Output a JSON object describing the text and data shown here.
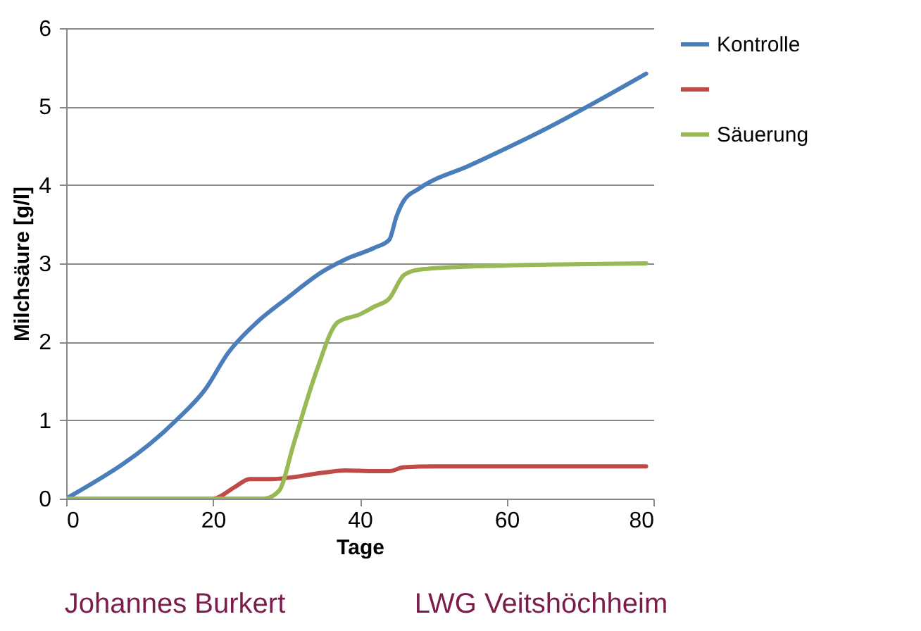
{
  "chart_data": {
    "type": "line",
    "xlabel": "Tage",
    "ylabel": "Milchsäure [g/l]",
    "xlim": [
      0,
      80
    ],
    "xticks": [
      0,
      20,
      40,
      60,
      80
    ],
    "ylim": [
      0,
      6
    ],
    "yticks": [
      0,
      1,
      2,
      3,
      4,
      5,
      6
    ],
    "grid": "y",
    "legend": "right",
    "marker": "none",
    "line_style": "solid",
    "annotations": [
      "Johannes Burkert",
      "LWG Veitshöchheim"
    ],
    "series": [
      {
        "name": "Kontrolle",
        "color": "#4a7ebb",
        "x": [
          0,
          15,
          19,
          22,
          26,
          30,
          35,
          38,
          42,
          44,
          45,
          46,
          48,
          55,
          65,
          79
        ],
        "values": [
          0,
          1.0,
          1.4,
          1.85,
          2.25,
          2.55,
          2.9,
          3.05,
          3.2,
          3.3,
          3.6,
          3.8,
          3.95,
          4.25,
          4.7,
          5.42
        ]
      },
      {
        "color": "#be4b48",
        "x": [
          0,
          20,
          23,
          25,
          28,
          35,
          38,
          42,
          44,
          46,
          50,
          79
        ],
        "values": [
          0,
          0,
          0.15,
          0.25,
          0.25,
          0.33,
          0.36,
          0.35,
          0.35,
          0.4,
          0.41,
          0.41
        ]
      },
      {
        "name": "Säuerung",
        "color": "#98b954",
        "x": [
          0,
          27,
          29,
          31,
          34,
          37,
          40,
          42,
          44,
          46,
          48,
          55,
          79
        ],
        "values": [
          0,
          0,
          0.1,
          0.7,
          1.6,
          2.25,
          2.35,
          2.45,
          2.55,
          2.85,
          2.92,
          2.96,
          3.0
        ]
      }
    ]
  }
}
